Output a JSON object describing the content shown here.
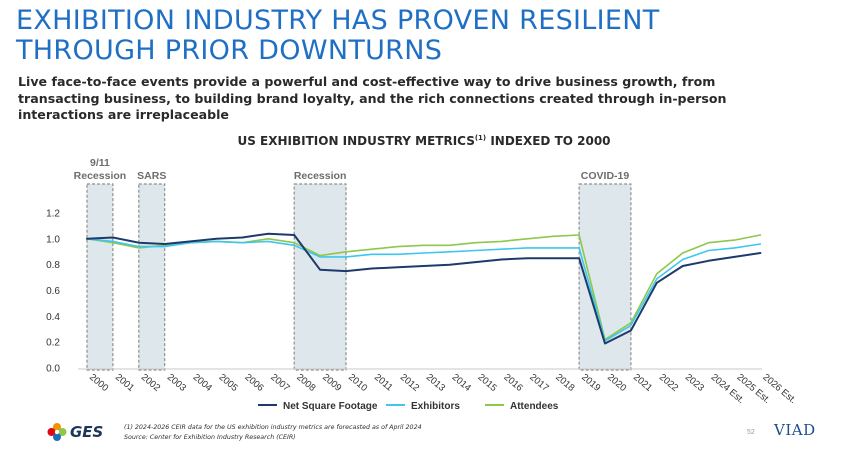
{
  "header": {
    "title_line1": "EXHIBITION INDUSTRY HAS PROVEN RESILIENT",
    "title_line2": "THROUGH PRIOR DOWNTURNS",
    "subtitle_line1": "Live face-to-face events provide a powerful and cost-effective way to drive business growth, from",
    "subtitle_line2": "transacting business, to building brand loyalty, and the rich connections created through in-person",
    "subtitle_line3": "interactions are irreplaceable"
  },
  "chart_data": {
    "type": "line",
    "title": "US EXHIBITION INDUSTRY METRICS",
    "title_sup": "(1)",
    "title_suffix": " INDEXED TO 2000",
    "xlabel": "",
    "ylabel": "",
    "ylim": [
      0,
      1.2
    ],
    "yticks": [
      "0.0",
      "0.2",
      "0.4",
      "0.6",
      "0.8",
      "1.0",
      "1.2"
    ],
    "grid": false,
    "legend_position": "bottom",
    "categories": [
      "2000",
      "2001",
      "2002",
      "2003",
      "2004",
      "2005",
      "2006",
      "2007",
      "2008",
      "2009",
      "2010",
      "2011",
      "2012",
      "2013",
      "2014",
      "2015",
      "2016",
      "2017",
      "2018",
      "2019",
      "2020",
      "2021",
      "2022",
      "2023",
      "2024 Est.",
      "2025 Est.",
      "2026 Est."
    ],
    "series": [
      {
        "name": "Net Square Footage",
        "color": "#1d3a6b",
        "values": [
          1.0,
          1.01,
          0.97,
          0.96,
          0.98,
          1.0,
          1.01,
          1.04,
          1.03,
          0.76,
          0.75,
          0.77,
          0.78,
          0.79,
          0.8,
          0.82,
          0.84,
          0.85,
          0.85,
          0.85,
          0.19,
          0.29,
          0.66,
          0.79,
          0.83,
          0.86,
          0.89
        ]
      },
      {
        "name": "Exhibitors",
        "color": "#3ec6ef",
        "values": [
          1.0,
          0.98,
          0.94,
          0.94,
          0.97,
          0.98,
          0.97,
          0.98,
          0.95,
          0.86,
          0.86,
          0.88,
          0.88,
          0.89,
          0.9,
          0.91,
          0.92,
          0.93,
          0.93,
          0.93,
          0.21,
          0.33,
          0.69,
          0.84,
          0.91,
          0.93,
          0.96
        ]
      },
      {
        "name": "Attendees",
        "color": "#8cc84b",
        "values": [
          1.0,
          0.97,
          0.93,
          0.95,
          0.97,
          0.98,
          0.97,
          1.0,
          0.97,
          0.87,
          0.9,
          0.92,
          0.94,
          0.95,
          0.95,
          0.97,
          0.98,
          1.0,
          1.02,
          1.03,
          0.22,
          0.35,
          0.73,
          0.89,
          0.97,
          0.99,
          1.03
        ]
      }
    ],
    "shaded_periods": [
      {
        "label_line1": "9/11",
        "label_line2": "Recession",
        "from": "2000",
        "to": "2001"
      },
      {
        "label_line1": "",
        "label_line2": "SARS",
        "from": "2002",
        "to": "2003"
      },
      {
        "label_line1": "",
        "label_line2": "Recession",
        "from": "2008",
        "to": "2010"
      },
      {
        "label_line1": "",
        "label_line2": "COVID-19",
        "from": "2019",
        "to": "2021"
      }
    ]
  },
  "footer": {
    "logo_text": "GES",
    "footnote_line1": "(1) 2024-2026 CEIR data for the US exhibition industry metrics are forecasted as of April 2024",
    "footnote_line2": "Source: Center for Exhibition Industry Research (CEIR)",
    "page_number": "52",
    "brand": "VIAD"
  }
}
